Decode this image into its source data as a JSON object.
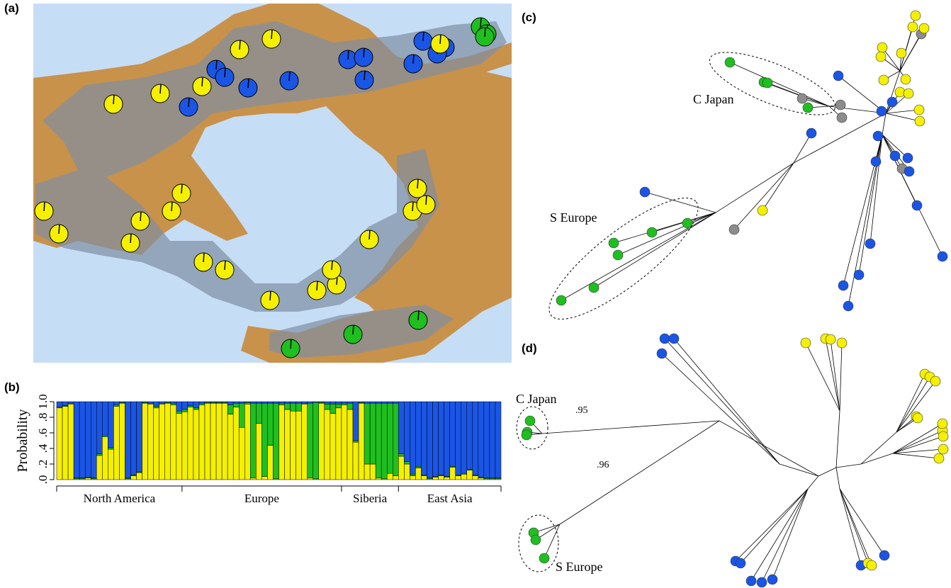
{
  "panel_labels": [
    "(a)",
    "(b)",
    "(c)",
    "(d)"
  ],
  "chart_data": {
    "type": "bar",
    "stacked": true,
    "ylabel": "Probability",
    "ylim": [
      0,
      1
    ],
    "yticks": [
      {
        "value": 0,
        "label": ".0"
      },
      {
        "value": 0.2,
        "label": ".2"
      },
      {
        "value": 0.4,
        "label": ".4"
      },
      {
        "value": 0.6,
        "label": ".6"
      },
      {
        "value": 0.8,
        "label": ".8"
      },
      {
        "value": 1,
        "label": "1.0"
      }
    ],
    "groups": [
      {
        "label": "North America",
        "count": 22
      },
      {
        "label": "Europe",
        "count": 28
      },
      {
        "label": "Siberia",
        "count": 10
      },
      {
        "label": "East Asia",
        "count": 18
      }
    ],
    "series": [
      {
        "color": "#f5f000",
        "values": [
          0.92,
          0.94,
          0.97,
          0.01,
          0.01,
          0.02,
          0.01,
          0.31,
          0.55,
          0.39,
          0.94,
          0.98,
          0.01,
          0.05,
          0.09,
          0.98,
          0.97,
          0.92,
          0.97,
          0.98,
          0.96,
          0.85,
          0.87,
          0.93,
          0.9,
          0.96,
          0.98,
          0.98,
          0.98,
          0.98,
          0.84,
          0.93,
          0.67,
          0.97,
          0.02,
          0.72,
          0.04,
          0.44,
          0.01,
          0.96,
          0.9,
          0.88,
          0.88,
          0.97,
          0.02,
          0.01,
          0.98,
          0.9,
          0.85,
          0.92,
          0.96,
          0.9,
          0.48,
          0.98,
          0.2,
          0.2,
          0.02,
          0.01,
          0.08,
          0.05,
          0.3,
          0.2,
          0.05,
          0.15,
          0.05,
          0.01,
          0.03,
          0.05,
          0.03,
          0.16,
          0.05,
          0.07,
          0.12,
          0.05,
          0.02,
          0.01,
          0.01,
          0.01
        ]
      },
      {
        "color": "#1fbf1f",
        "values": [
          0.01,
          0.01,
          0.01,
          0.01,
          0.01,
          0.01,
          0.01,
          0.02,
          0.02,
          0.02,
          0.02,
          0.01,
          0.01,
          0.01,
          0.01,
          0.01,
          0.01,
          0.02,
          0.01,
          0.01,
          0.02,
          0.03,
          0.03,
          0.02,
          0.02,
          0.02,
          0.01,
          0.01,
          0.01,
          0.01,
          0.12,
          0.05,
          0.31,
          0.02,
          0.96,
          0.26,
          0.94,
          0.54,
          0.97,
          0.02,
          0.08,
          0.1,
          0.1,
          0.01,
          0.96,
          0.98,
          0.01,
          0.07,
          0.12,
          0.05,
          0.02,
          0.08,
          0.02,
          0.01,
          0.78,
          0.78,
          0.96,
          0.97,
          0.9,
          0.93,
          0.03,
          0.03,
          0.02,
          0.02,
          0.01,
          0.01,
          0.01,
          0.01,
          0.01,
          0.01,
          0.01,
          0.01,
          0.01,
          0.01,
          0.01,
          0.01,
          0.01,
          0.01
        ]
      },
      {
        "color": "#1a55e6",
        "values": [
          0.07,
          0.05,
          0.02,
          0.98,
          0.98,
          0.97,
          0.98,
          0.67,
          0.43,
          0.59,
          0.04,
          0.01,
          0.98,
          0.94,
          0.9,
          0.01,
          0.02,
          0.06,
          0.02,
          0.01,
          0.02,
          0.12,
          0.1,
          0.05,
          0.08,
          0.02,
          0.01,
          0.01,
          0.01,
          0.01,
          0.04,
          0.02,
          0.02,
          0.01,
          0.02,
          0.02,
          0.02,
          0.02,
          0.02,
          0.02,
          0.02,
          0.02,
          0.02,
          0.02,
          0.02,
          0.01,
          0.01,
          0.03,
          0.03,
          0.03,
          0.02,
          0.02,
          0.5,
          0.01,
          0.02,
          0.02,
          0.02,
          0.02,
          0.02,
          0.02,
          0.67,
          0.77,
          0.93,
          0.83,
          0.94,
          0.98,
          0.96,
          0.94,
          0.96,
          0.83,
          0.94,
          0.92,
          0.87,
          0.94,
          0.97,
          0.98,
          0.98,
          0.98
        ]
      }
    ]
  },
  "tree_c": {
    "labels": [
      "C Japan",
      "S Europe"
    ]
  },
  "tree_d": {
    "labels": [
      "C Japan",
      "S Europe"
    ],
    "support": [
      ".95",
      ".96"
    ]
  }
}
